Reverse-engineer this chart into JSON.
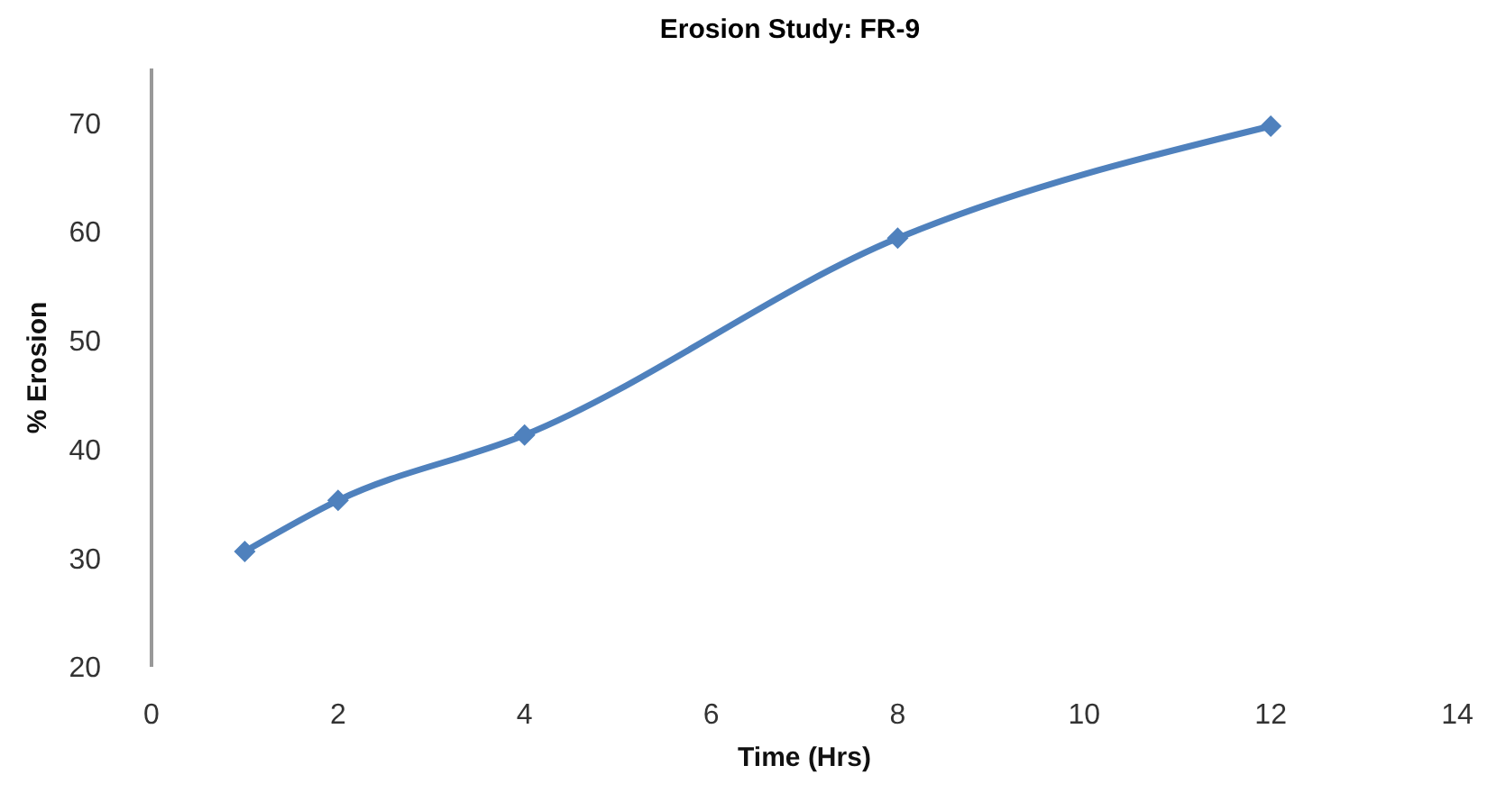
{
  "chart_data": {
    "type": "line",
    "title": "Erosion Study: FR-9",
    "xlabel": "Time (Hrs)",
    "ylabel": "% Erosion",
    "x": [
      1,
      2,
      4,
      8,
      12
    ],
    "series": [
      {
        "color": "#4f81bd",
        "values": [
          30.6,
          35.3,
          41.3,
          59.4,
          69.7
        ]
      }
    ],
    "xlim": [
      0,
      14
    ],
    "xticks": [
      0,
      2,
      4,
      6,
      8,
      10,
      12,
      14
    ],
    "ylim": [
      20,
      75
    ],
    "yticks": [
      20,
      30,
      40,
      50,
      60,
      70
    ],
    "grid": false,
    "legend": false,
    "marker": "diamond",
    "line_style": "solid"
  }
}
